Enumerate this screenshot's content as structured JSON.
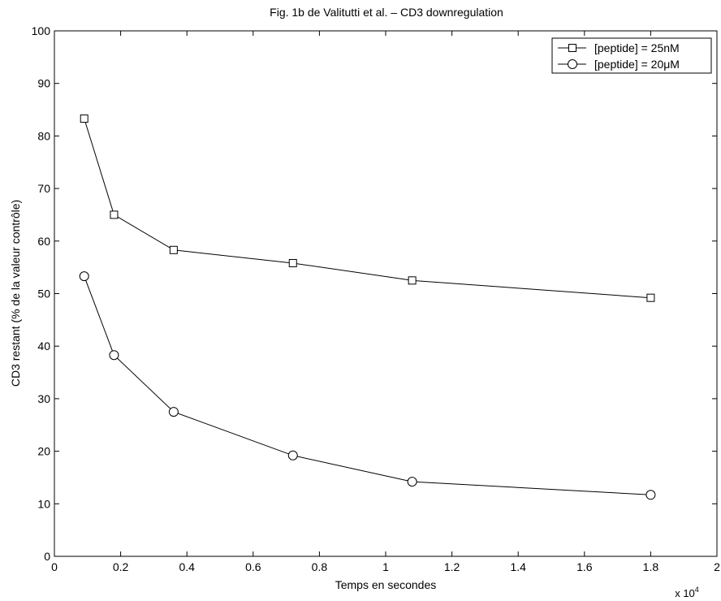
{
  "chart_data": {
    "type": "line",
    "title": "Fig. 1b de Valitutti et al. – CD3 downregulation",
    "xlabel": "Temps en secondes",
    "ylabel": "CD3 restant (% de la valeur contrôle)",
    "x_multiplier_label": "x 10",
    "x_multiplier_exponent": "4",
    "xlim": [
      0,
      20000
    ],
    "ylim": [
      0,
      100
    ],
    "x_tick_values": [
      0,
      2000,
      4000,
      6000,
      8000,
      10000,
      12000,
      14000,
      16000,
      18000,
      20000
    ],
    "x_tick_labels": [
      "0",
      "0.2",
      "0.4",
      "0.6",
      "0.8",
      "1",
      "1.2",
      "1.4",
      "1.6",
      "1.8",
      "2"
    ],
    "y_tick_values": [
      0,
      10,
      20,
      30,
      40,
      50,
      60,
      70,
      80,
      90,
      100
    ],
    "y_tick_labels": [
      "0",
      "10",
      "20",
      "30",
      "40",
      "50",
      "60",
      "70",
      "80",
      "90",
      "100"
    ],
    "grid": false,
    "legend_position": "top-right",
    "series": [
      {
        "name": "[peptide] = 25nM",
        "marker": "square",
        "x": [
          900,
          1800,
          3600,
          7200,
          10800,
          18000
        ],
        "y": [
          83.3,
          65.0,
          58.3,
          55.8,
          52.5,
          49.2
        ]
      },
      {
        "name": "[peptide] = 20μM",
        "marker": "circle",
        "x": [
          900,
          1800,
          3600,
          7200,
          10800,
          18000
        ],
        "y": [
          53.3,
          38.3,
          27.5,
          19.2,
          14.2,
          11.7
        ]
      }
    ]
  }
}
